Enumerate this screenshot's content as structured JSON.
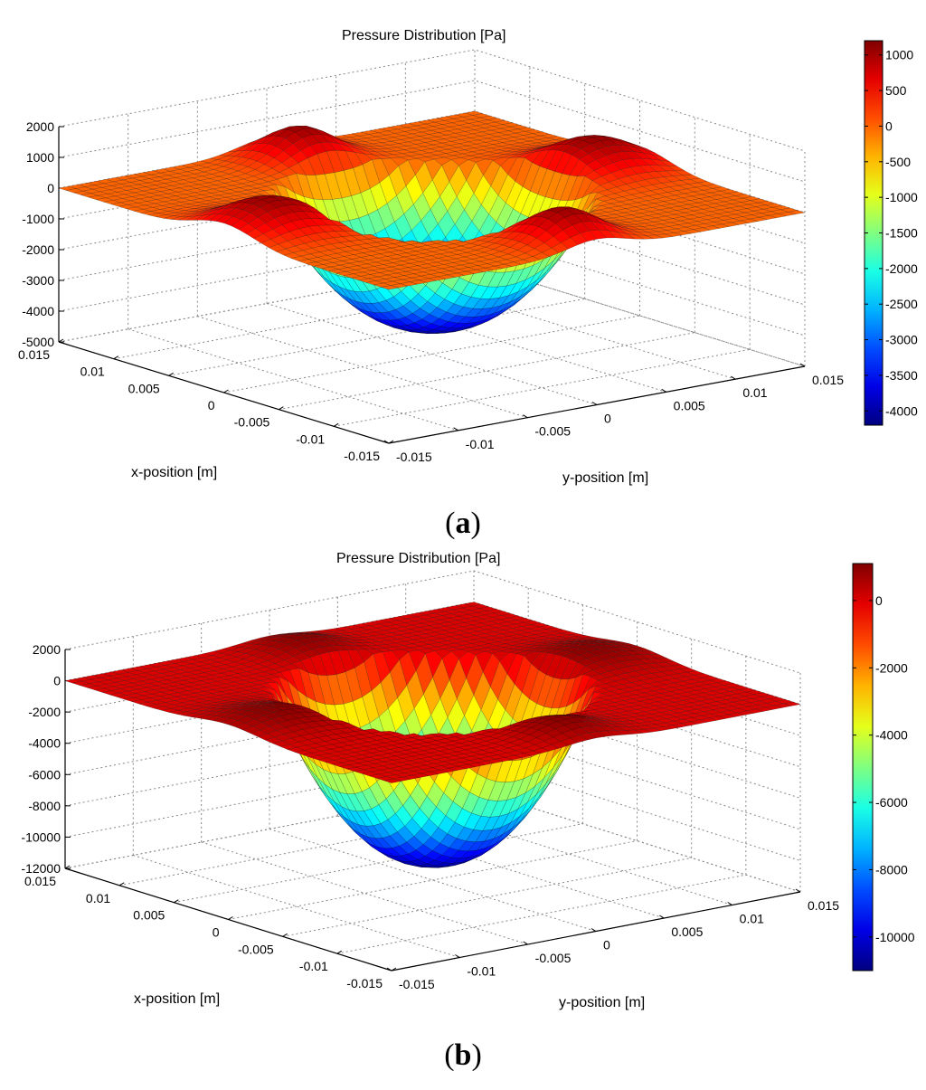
{
  "chart_data": [
    {
      "type": "surface3d",
      "panel_label": "a",
      "title": "Pressure Distribution [Pa]",
      "xlabel": "x-position [m]",
      "ylabel": "y-position [m]",
      "zlabel": "",
      "xlim": [
        -0.015,
        0.015
      ],
      "ylim": [
        -0.015,
        0.015
      ],
      "zlim": [
        -5000,
        2000
      ],
      "x_ticks": [
        "0.015",
        "0.01",
        "0.005",
        "0",
        "-0.005",
        "-0.01",
        "-0.015"
      ],
      "y_ticks": [
        "-0.015",
        "-0.01",
        "-0.005",
        "0",
        "0.005",
        "0.01",
        "0.015"
      ],
      "z_ticks": [
        "2000",
        "1000",
        "0",
        "-1000",
        "-2000",
        "-3000",
        "-4000",
        "-5000"
      ],
      "colorbar": {
        "range": [
          -4200,
          1200
        ],
        "ticks": [
          "1000",
          "500",
          "0",
          "-500",
          "-1000",
          "-1500",
          "-2000",
          "-2500",
          "-3000",
          "-3500",
          "-4000"
        ],
        "tick_values": [
          1000,
          500,
          0,
          -500,
          -1000,
          -1500,
          -2000,
          -2500,
          -3000,
          -3500,
          -4000
        ]
      },
      "surface": {
        "rim_pressure": 0,
        "bowl_min": -4200,
        "peak_max": 1200,
        "colormap": "jet"
      }
    },
    {
      "type": "surface3d",
      "panel_label": "b",
      "title": "Pressure Distribution [Pa]",
      "xlabel": "x-position [m]",
      "ylabel": "y-position [m]",
      "zlabel": "",
      "xlim": [
        -0.015,
        0.015
      ],
      "ylim": [
        -0.015,
        0.015
      ],
      "zlim": [
        -12000,
        2000
      ],
      "x_ticks": [
        "0.015",
        "0.01",
        "0.005",
        "0",
        "-0.005",
        "-0.01",
        "-0.015"
      ],
      "y_ticks": [
        "-0.015",
        "-0.01",
        "-0.005",
        "0",
        "0.005",
        "0.01",
        "0.015"
      ],
      "z_ticks": [
        "2000",
        "0",
        "-2000",
        "-4000",
        "-6000",
        "-8000",
        "-10000",
        "-12000"
      ],
      "colorbar": {
        "range": [
          -11000,
          1100
        ],
        "ticks": [
          "0",
          "-2000",
          "-4000",
          "-6000",
          "-8000",
          "-10000"
        ],
        "tick_values": [
          0,
          -2000,
          -4000,
          -6000,
          -8000,
          -10000
        ]
      },
      "surface": {
        "rim_pressure": 0,
        "bowl_min": -11000,
        "peak_max": 1100,
        "colormap": "jet"
      }
    }
  ],
  "captions": {
    "a": "a",
    "b": "b"
  }
}
